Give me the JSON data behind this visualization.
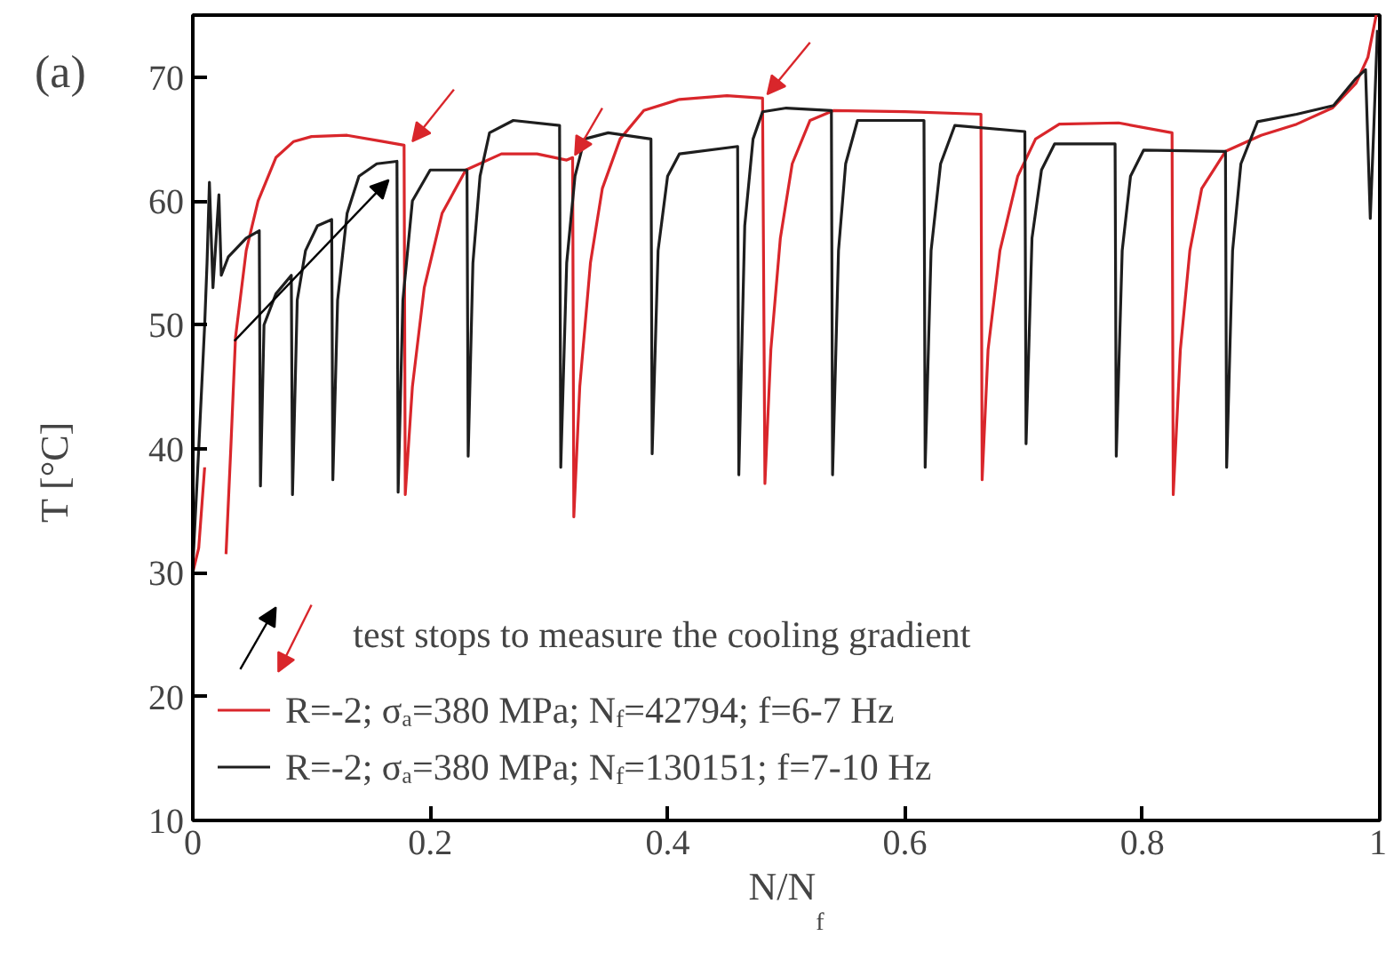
{
  "chart_data": {
    "type": "line",
    "title": "(a)",
    "xlabel": "N/N$_{f}$",
    "ylabel": "T [°C]",
    "annotations": [
      "test stops to measure the cooling gradient"
    ],
    "xlim": [
      0,
      1
    ],
    "ylim": [
      10,
      75
    ],
    "xticks": [
      0,
      0.2,
      0.4,
      0.6,
      0.8,
      1
    ],
    "yticks": [
      10,
      20,
      30,
      40,
      50,
      60,
      70
    ],
    "grid": false,
    "legend": "bottom left",
    "marker": "none",
    "line_style": "solid",
    "series": [
      {
        "name": "R=-2; σₐ=380 MPa; N$_{f}$=42794; f=6-7 Hz",
        "color": "#d9262b",
        "x": [
          0,
          0.005,
          0.01,
          0.02,
          0.028,
          0.032,
          0.036,
          0.045,
          0.055,
          0.07,
          0.085,
          0.1,
          0.13,
          0.16,
          0.178,
          0.179,
          0.185,
          0.195,
          0.21,
          0.23,
          0.26,
          0.29,
          0.315,
          0.32,
          0.321,
          0.326,
          0.335,
          0.345,
          0.36,
          0.38,
          0.41,
          0.45,
          0.48,
          0.482,
          0.487,
          0.495,
          0.505,
          0.52,
          0.54,
          0.6,
          0.664,
          0.665,
          0.67,
          0.68,
          0.695,
          0.71,
          0.73,
          0.78,
          0.825,
          0.826,
          0.832,
          0.84,
          0.85,
          0.87,
          0.9,
          0.93,
          0.96,
          0.98,
          0.99,
          0.997
        ],
        "values": [
          30,
          32,
          38.5,
          null,
          31.5,
          40,
          49,
          56,
          60,
          63.5,
          64.8,
          65.2,
          65.3,
          64.8,
          64.5,
          36.3,
          45,
          53,
          59,
          62.5,
          63.8,
          63.8,
          63.3,
          63.5,
          34.5,
          45,
          55,
          61,
          65,
          67.3,
          68.2,
          68.5,
          68.3,
          37.2,
          48,
          57,
          63,
          66.5,
          67.3,
          67.2,
          67,
          37.5,
          48,
          56,
          62,
          65,
          66.2,
          66.3,
          65.5,
          36.3,
          48,
          56,
          61,
          64,
          65.3,
          66.2,
          67.5,
          69.5,
          71.6,
          75
        ]
      },
      {
        "name": "R=-2; σₐ=380 MPa; N$_{f}$=130151; f=7-10 Hz",
        "color": "#1e1e1e",
        "x": [
          0,
          0.005,
          0.01,
          0.012,
          0.014,
          0.017,
          0.022,
          0.024,
          0.03,
          0.045,
          0.056,
          0.057,
          0.06,
          0.07,
          0.083,
          0.084,
          0.088,
          0.095,
          0.105,
          0.117,
          0.118,
          0.122,
          0.13,
          0.14,
          0.155,
          0.172,
          0.173,
          0.177,
          0.185,
          0.2,
          0.231,
          0.232,
          0.236,
          0.242,
          0.25,
          0.27,
          0.309,
          0.31,
          0.315,
          0.322,
          0.33,
          0.35,
          0.386,
          0.387,
          0.392,
          0.4,
          0.41,
          0.459,
          0.46,
          0.465,
          0.472,
          0.48,
          0.5,
          0.538,
          0.539,
          0.544,
          0.55,
          0.56,
          0.616,
          0.617,
          0.622,
          0.63,
          0.642,
          0.701,
          0.702,
          0.707,
          0.715,
          0.726,
          0.777,
          0.778,
          0.783,
          0.79,
          0.801,
          0.87,
          0.871,
          0.876,
          0.883,
          0.897,
          0.93,
          0.961,
          0.98,
          0.988,
          0.992,
          0.995,
          0.998
        ],
        "values": [
          30.5,
          40,
          50,
          55,
          61.5,
          53,
          60.5,
          54,
          55.5,
          57,
          57.6,
          37,
          50,
          52.5,
          54,
          36.3,
          52,
          56,
          58,
          58.5,
          37.5,
          52,
          59,
          62,
          63,
          63.2,
          36.5,
          52,
          60,
          62.5,
          62.5,
          39.4,
          55,
          62,
          65.5,
          66.5,
          66.1,
          38.5,
          55,
          62,
          65,
          65.5,
          65,
          39.6,
          56,
          62,
          63.8,
          64.4,
          37.9,
          58,
          65,
          67.2,
          67.5,
          67.3,
          37.9,
          56,
          63,
          66.5,
          66.5,
          38.5,
          56,
          63,
          66.1,
          65.6,
          40.4,
          57,
          62.5,
          64.6,
          64.6,
          39.4,
          56,
          62,
          64.1,
          64,
          38.5,
          56,
          63,
          66.4,
          67,
          67.7,
          69.9,
          70.6,
          58.6,
          66,
          73.8
        ]
      }
    ]
  }
}
